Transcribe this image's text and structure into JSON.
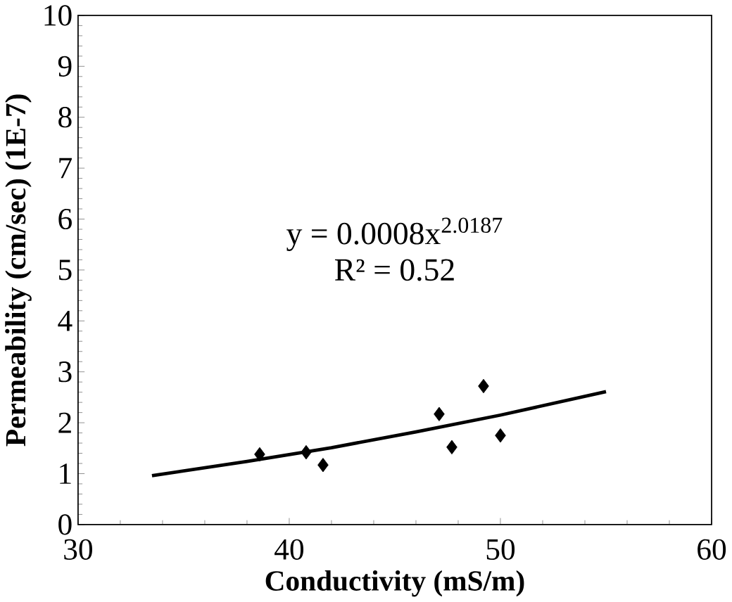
{
  "chart_data": {
    "type": "scatter",
    "xlabel": "Conductivity (mS/m)",
    "ylabel": "Permeability (cm/sec) (1E-7)",
    "xlim": [
      30,
      60
    ],
    "ylim": [
      0,
      10
    ],
    "xticks": [
      30,
      40,
      50,
      60
    ],
    "yticks": [
      0,
      1,
      2,
      3,
      4,
      5,
      6,
      7,
      8,
      9,
      10
    ],
    "marker": "diamond",
    "grid": false,
    "series": [
      {
        "color": "#000000",
        "x": [
          38.6,
          40.8,
          41.6,
          47.1,
          47.7,
          49.2,
          50.0
        ],
        "values": [
          1.38,
          1.42,
          1.17,
          2.17,
          1.52,
          2.72,
          1.75
        ]
      },
      {
        "type": "line",
        "color": "#000000",
        "marker": "none",
        "x": [
          33.5,
          38,
          42,
          46,
          50,
          55
        ],
        "values": [
          0.96,
          1.24,
          1.51,
          1.82,
          2.15,
          2.61
        ]
      }
    ],
    "annotations": [
      "y = 0.0008x$^{2.0187}$",
      "R² = 0.52"
    ]
  }
}
